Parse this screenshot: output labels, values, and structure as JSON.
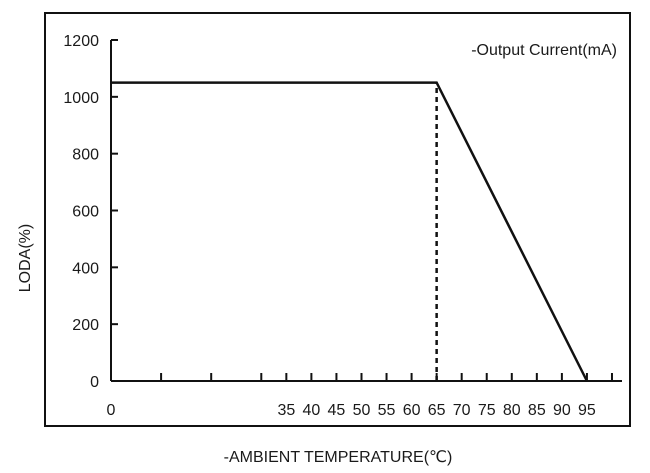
{
  "chart_data": {
    "type": "line",
    "title": "",
    "legend": {
      "label": "-Output Current(mA)",
      "placement": "top-right"
    },
    "xlabel": "-AMBIENT TEMPERATURE(℃)",
    "ylabel": "LODA(%)",
    "xlim": [
      0,
      102
    ],
    "ylim": [
      0,
      1200
    ],
    "x_ticks": [
      0,
      35,
      40,
      45,
      50,
      55,
      60,
      65,
      70,
      75,
      80,
      85,
      90,
      95
    ],
    "y_ticks": [
      0,
      200,
      400,
      600,
      800,
      1000,
      1200
    ],
    "x_minor_ticks": [
      10,
      20,
      30,
      100
    ],
    "grid": false,
    "series": [
      {
        "name": "-Output Current(mA)",
        "x": [
          0,
          65,
          95
        ],
        "y": [
          1050,
          1050,
          0
        ]
      }
    ],
    "reference_lines": [
      {
        "style": "dashed",
        "x": [
          65,
          65
        ],
        "y": [
          0,
          1050
        ]
      }
    ]
  }
}
